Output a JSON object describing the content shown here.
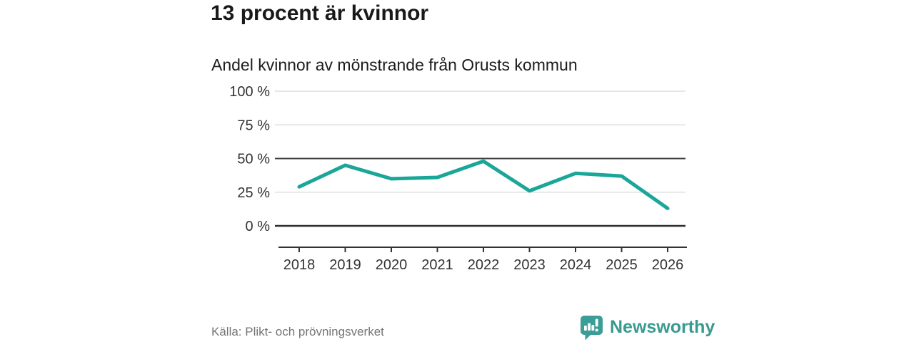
{
  "header": {
    "title": "13 procent är kvinnor"
  },
  "chart": {
    "subtitle": "Andel kvinnor av mönstrande från Orusts kommun"
  },
  "chart_data": {
    "type": "line",
    "title": "13 procent är kvinnor",
    "subtitle": "Andel kvinnor av mönstrande från Orusts kommun",
    "x": [
      2018,
      2019,
      2020,
      2021,
      2022,
      2023,
      2024,
      2025,
      2026
    ],
    "x_tick_labels": [
      "2018",
      "2019",
      "2020",
      "2021",
      "2022",
      "2023",
      "2024",
      "2025",
      "2026"
    ],
    "values": [
      29,
      45,
      35,
      36,
      48,
      26,
      39,
      37,
      13
    ],
    "unit": "%",
    "ylim": [
      0,
      100
    ],
    "y_ticks": [
      0,
      25,
      50,
      75,
      100
    ],
    "y_tick_labels": [
      "0 %",
      "25 %",
      "50 %",
      "75 %",
      "100 %"
    ],
    "grid": "horizontal",
    "emphasized_gridlines": [
      0,
      50
    ],
    "legend": "none",
    "line_color": "#1aa698",
    "gridline_color": "#d8d8d8",
    "emphasis_color": "#3f3f3f",
    "baseline_color": "#2e2e2e",
    "axis_color": "#333333"
  },
  "footer": {
    "source": "Källa: Plikt- och prövningsverket",
    "brand": "Newsworthy",
    "brand_color": "#399a90"
  }
}
